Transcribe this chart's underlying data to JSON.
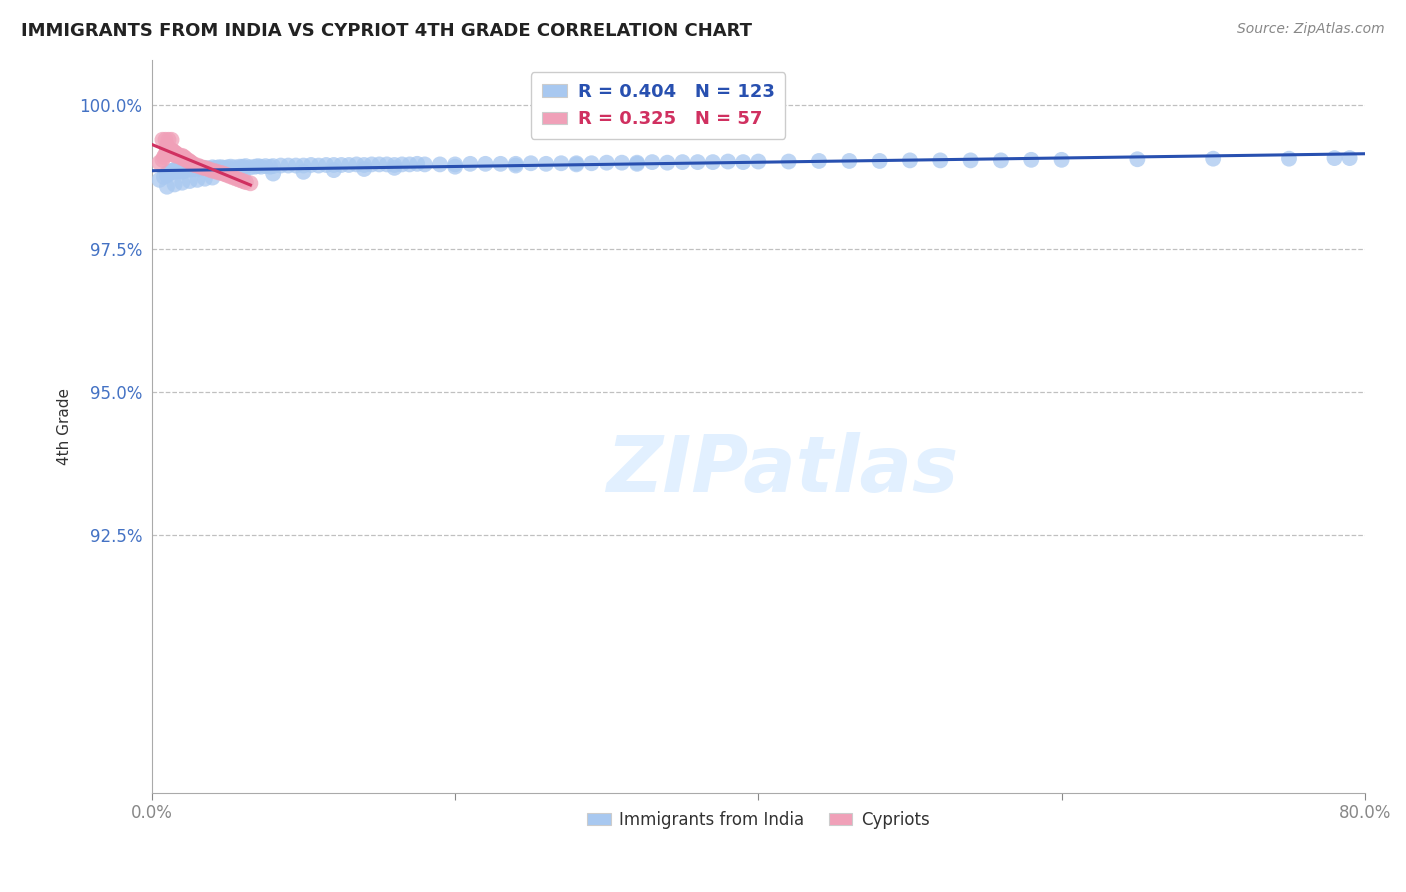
{
  "title": "IMMIGRANTS FROM INDIA VS CYPRIOT 4TH GRADE CORRELATION CHART",
  "source": "Source: ZipAtlas.com",
  "ylabel": "4th Grade",
  "xlim": [
    0.0,
    0.8
  ],
  "ylim": [
    0.88,
    1.008
  ],
  "ytick_labels": [
    "92.5%",
    "95.0%",
    "97.5%",
    "100.0%"
  ],
  "ytick_vals": [
    0.925,
    0.95,
    0.975,
    1.0
  ],
  "blue_R": 0.404,
  "blue_N": 123,
  "pink_R": 0.325,
  "pink_N": 57,
  "blue_color": "#a8c8f0",
  "pink_color": "#f0a0b8",
  "blue_line_color": "#2850b0",
  "pink_line_color": "#d03060",
  "legend_label_blue": "Immigrants from India",
  "legend_label_pink": "Cypriots",
  "blue_scatter_x": [
    0.005,
    0.008,
    0.01,
    0.01,
    0.01,
    0.012,
    0.012,
    0.013,
    0.014,
    0.015,
    0.015,
    0.015,
    0.016,
    0.016,
    0.018,
    0.018,
    0.02,
    0.02,
    0.02,
    0.022,
    0.022,
    0.024,
    0.025,
    0.026,
    0.028,
    0.03,
    0.03,
    0.032,
    0.034,
    0.035,
    0.038,
    0.04,
    0.042,
    0.044,
    0.046,
    0.048,
    0.05,
    0.052,
    0.055,
    0.058,
    0.06,
    0.062,
    0.065,
    0.068,
    0.07,
    0.072,
    0.075,
    0.078,
    0.08,
    0.085,
    0.09,
    0.095,
    0.1,
    0.105,
    0.11,
    0.115,
    0.12,
    0.125,
    0.13,
    0.135,
    0.14,
    0.145,
    0.15,
    0.155,
    0.16,
    0.165,
    0.17,
    0.175,
    0.18,
    0.19,
    0.2,
    0.21,
    0.22,
    0.23,
    0.24,
    0.25,
    0.26,
    0.27,
    0.28,
    0.29,
    0.3,
    0.31,
    0.32,
    0.33,
    0.34,
    0.35,
    0.36,
    0.37,
    0.38,
    0.39,
    0.4,
    0.42,
    0.44,
    0.46,
    0.48,
    0.5,
    0.52,
    0.54,
    0.56,
    0.58,
    0.6,
    0.65,
    0.7,
    0.75,
    0.78,
    0.79,
    0.01,
    0.015,
    0.02,
    0.025,
    0.03,
    0.035,
    0.04,
    0.06,
    0.08,
    0.1,
    0.12,
    0.14,
    0.16,
    0.2,
    0.24,
    0.28,
    0.32
  ],
  "blue_scatter_y": [
    0.987,
    0.9875,
    0.988,
    0.9878,
    0.9882,
    0.9885,
    0.9882,
    0.9884,
    0.9886,
    0.9885,
    0.9888,
    0.9886,
    0.9887,
    0.9884,
    0.9888,
    0.9885,
    0.9888,
    0.9886,
    0.9884,
    0.9888,
    0.9886,
    0.9888,
    0.989,
    0.9888,
    0.989,
    0.989,
    0.9888,
    0.9892,
    0.989,
    0.9891,
    0.989,
    0.9892,
    0.9891,
    0.9892,
    0.9892,
    0.9891,
    0.9892,
    0.9893,
    0.9892,
    0.9893,
    0.9893,
    0.9894,
    0.9892,
    0.9893,
    0.9894,
    0.9893,
    0.9894,
    0.9893,
    0.9894,
    0.9895,
    0.9895,
    0.9895,
    0.9895,
    0.9896,
    0.9895,
    0.9896,
    0.9896,
    0.9896,
    0.9896,
    0.9897,
    0.9896,
    0.9897,
    0.9897,
    0.9897,
    0.9896,
    0.9897,
    0.9897,
    0.9898,
    0.9897,
    0.9897,
    0.9897,
    0.9898,
    0.9898,
    0.9898,
    0.9898,
    0.9899,
    0.9898,
    0.9899,
    0.9899,
    0.9899,
    0.99,
    0.99,
    0.99,
    0.9901,
    0.99,
    0.9901,
    0.9901,
    0.9901,
    0.9902,
    0.9901,
    0.9902,
    0.9902,
    0.9903,
    0.9903,
    0.9903,
    0.9904,
    0.9904,
    0.9904,
    0.9904,
    0.9905,
    0.9905,
    0.9906,
    0.9907,
    0.9907,
    0.9908,
    0.9908,
    0.9858,
    0.9862,
    0.9865,
    0.9868,
    0.987,
    0.9872,
    0.9874,
    0.9878,
    0.9881,
    0.9884,
    0.9887,
    0.9889,
    0.9891,
    0.9893,
    0.9895,
    0.9897,
    0.9898
  ],
  "pink_scatter_x": [
    0.005,
    0.007,
    0.008,
    0.009,
    0.01,
    0.01,
    0.01,
    0.01,
    0.01,
    0.012,
    0.012,
    0.012,
    0.013,
    0.013,
    0.014,
    0.014,
    0.015,
    0.015,
    0.015,
    0.016,
    0.016,
    0.017,
    0.018,
    0.019,
    0.02,
    0.02,
    0.021,
    0.022,
    0.022,
    0.023,
    0.024,
    0.025,
    0.026,
    0.027,
    0.028,
    0.03,
    0.032,
    0.034,
    0.036,
    0.038,
    0.04,
    0.042,
    0.044,
    0.046,
    0.048,
    0.05,
    0.052,
    0.054,
    0.056,
    0.058,
    0.06,
    0.062,
    0.065,
    0.007,
    0.009,
    0.011,
    0.013
  ],
  "pink_scatter_y": [
    0.99,
    0.9905,
    0.991,
    0.9915,
    0.992,
    0.9915,
    0.9925,
    0.993,
    0.9925,
    0.992,
    0.9915,
    0.9918,
    0.992,
    0.9922,
    0.992,
    0.9918,
    0.9916,
    0.9914,
    0.9918,
    0.9916,
    0.9912,
    0.9914,
    0.9912,
    0.991,
    0.9912,
    0.9908,
    0.991,
    0.9906,
    0.9908,
    0.9904,
    0.9904,
    0.9902,
    0.99,
    0.9898,
    0.9896,
    0.9895,
    0.9893,
    0.9891,
    0.989,
    0.9888,
    0.9886,
    0.9885,
    0.9883,
    0.9882,
    0.988,
    0.9878,
    0.9876,
    0.9874,
    0.9872,
    0.987,
    0.9868,
    0.9866,
    0.9864,
    0.994,
    0.994,
    0.994,
    0.994
  ]
}
